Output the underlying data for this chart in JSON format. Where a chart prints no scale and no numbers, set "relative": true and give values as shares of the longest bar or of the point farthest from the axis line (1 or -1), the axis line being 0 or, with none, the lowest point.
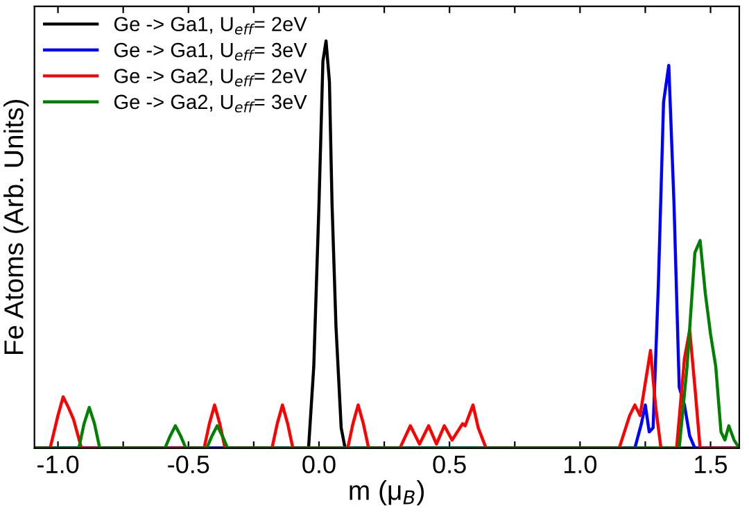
{
  "chart_data": {
    "type": "line",
    "relative": true,
    "xlabel": "m (μ$_{B}$)",
    "ylabel": "Fe Atoms (Arb. Units)",
    "xlim": [
      -1.09,
      1.61
    ],
    "xticks": [
      {
        "value": -1.0,
        "label": "-1.0"
      },
      {
        "value": -0.75,
        "label": null
      },
      {
        "value": -0.5,
        "label": "-0.5"
      },
      {
        "value": -0.25,
        "label": null
      },
      {
        "value": 0.0,
        "label": "0.0"
      },
      {
        "value": 0.25,
        "label": null
      },
      {
        "value": 0.5,
        "label": "0.5"
      },
      {
        "value": 0.75,
        "label": null
      },
      {
        "value": 1.0,
        "label": "1.0"
      },
      {
        "value": 1.25,
        "label": null
      },
      {
        "value": 1.5,
        "label": "1.5"
      }
    ],
    "tick_labels": "x",
    "grid": false,
    "legend": "top left",
    "marker": "none",
    "line_style": "solid",
    "series": [
      {
        "name": "Ge -> Ga1, U$_{eff}$= 2eV",
        "color": "#000000",
        "x": [
          -1.09,
          -0.04,
          -0.02,
          0.0,
          0.015,
          0.027,
          0.04,
          0.05,
          0.065,
          0.085,
          0.1,
          1.61
        ],
        "values": [
          0,
          0,
          0.2,
          0.6,
          0.95,
          1.0,
          0.9,
          0.6,
          0.3,
          0.05,
          0,
          0
        ]
      },
      {
        "name": "Ge -> Ga1, U$_{eff}$= 3eV",
        "color": "#0000ff",
        "x": [
          -1.09,
          1.21,
          1.235,
          1.25,
          1.265,
          1.28,
          1.3,
          1.32,
          1.34,
          1.36,
          1.38,
          1.4,
          1.42,
          1.44,
          1.61
        ],
        "values": [
          0,
          0,
          0.06,
          0.106,
          0.04,
          0.05,
          0.4,
          0.85,
          0.94,
          0.6,
          0.15,
          0.106,
          0.03,
          0,
          0
        ]
      },
      {
        "name": "Ge -> Ga2, U$_{eff}$= 2eV",
        "color": "#ff0000",
        "x": [
          -1.09,
          -1.03,
          -1.0,
          -0.98,
          -0.96,
          -0.94,
          -0.91,
          -0.44,
          -0.42,
          -0.4,
          -0.38,
          -0.36,
          -0.18,
          -0.16,
          -0.14,
          -0.12,
          -0.1,
          0.11,
          0.13,
          0.15,
          0.17,
          0.19,
          0.31,
          0.35,
          0.385,
          0.42,
          0.45,
          0.48,
          0.51,
          0.55,
          0.56,
          0.59,
          0.61,
          0.64,
          1.15,
          1.19,
          1.21,
          1.23,
          1.27,
          1.29,
          1.31,
          1.37,
          1.4,
          1.42,
          1.44,
          1.46,
          1.61
        ],
        "values": [
          0,
          0,
          0.08,
          0.126,
          0.1,
          0.07,
          0,
          0,
          0.06,
          0.106,
          0.06,
          0,
          0,
          0.06,
          0.106,
          0.06,
          0,
          0,
          0.06,
          0.106,
          0.06,
          0,
          0,
          0.055,
          0.01,
          0.055,
          0.01,
          0.055,
          0.02,
          0.06,
          0.055,
          0.106,
          0.05,
          0,
          0,
          0.08,
          0.106,
          0.08,
          0.24,
          0.1,
          0,
          0,
          0.22,
          0.29,
          0.15,
          0,
          0
        ]
      },
      {
        "name": "Ge -> Ga2, U$_{eff}$= 3eV",
        "color": "#008000",
        "x": [
          -1.09,
          -0.92,
          -0.9,
          -0.88,
          -0.86,
          -0.84,
          -0.59,
          -0.57,
          -0.55,
          -0.53,
          -0.51,
          -0.43,
          -0.41,
          -0.39,
          -0.37,
          -0.35,
          1.38,
          1.41,
          1.44,
          1.46,
          1.48,
          1.5,
          1.52,
          1.54,
          1.555,
          1.57,
          1.59,
          1.61
        ],
        "values": [
          0,
          0,
          0.06,
          0.1,
          0.06,
          0,
          0,
          0.03,
          0.055,
          0.03,
          0,
          0,
          0.03,
          0.055,
          0.03,
          0,
          0,
          0.2,
          0.48,
          0.51,
          0.38,
          0.28,
          0.2,
          0.04,
          0.02,
          0.055,
          0.02,
          0
        ]
      }
    ]
  }
}
